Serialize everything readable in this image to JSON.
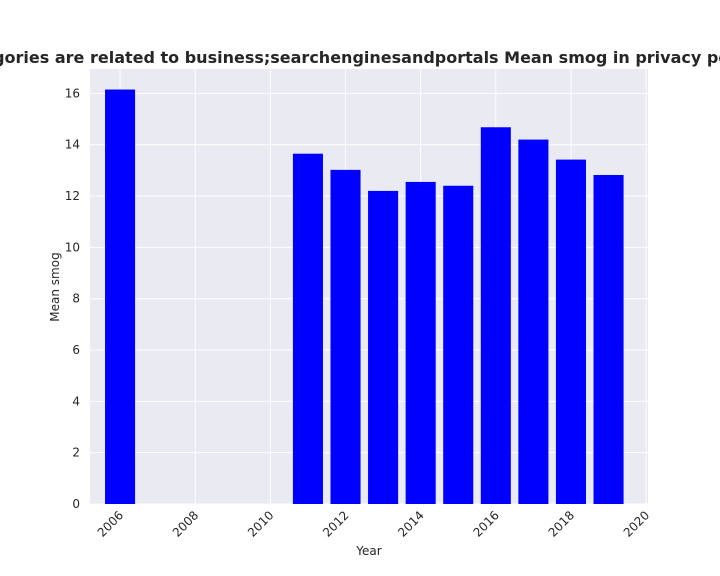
{
  "chart_data": {
    "type": "bar",
    "title": "n categories are related to business;searchenginesandportals Mean smog in privacy policies b",
    "xlabel": "Year",
    "ylabel": "Mean smog",
    "x": [
      2006,
      2011,
      2012,
      2013,
      2014,
      2015,
      2016,
      2017,
      2018,
      2019
    ],
    "values": [
      16.15,
      13.65,
      13.02,
      12.2,
      12.55,
      12.4,
      14.68,
      14.2,
      13.42,
      12.82
    ],
    "xlim": [
      2005.2,
      2020.05
    ],
    "ylim": [
      0,
      16.95
    ],
    "x_ticks": [
      2006,
      2008,
      2010,
      2012,
      2014,
      2016,
      2018,
      2020
    ],
    "y_ticks": [
      0,
      2,
      4,
      6,
      8,
      10,
      12,
      14,
      16
    ],
    "bar_color": "#0000ff",
    "plot_background": "#eaeaf2",
    "grid": true,
    "grid_color": "#ffffff"
  }
}
